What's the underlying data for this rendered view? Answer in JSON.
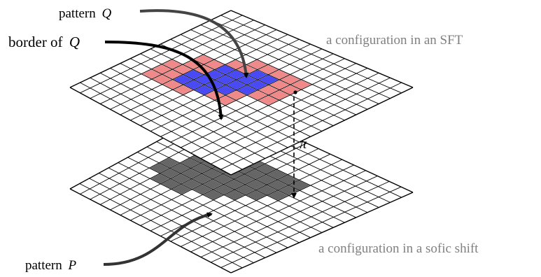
{
  "labels": {
    "pattern_q": {
      "text": "pattern",
      "symbol": "Q"
    },
    "border_q": {
      "text": "border of",
      "symbol": "Q"
    },
    "pattern_p": {
      "text": "pattern",
      "symbol": "P"
    },
    "sft_caption": "a configuration in an SFT",
    "sofic_caption": "a configuration in a sofic shift",
    "map_symbol": "π"
  },
  "colors": {
    "pattern_q": "#4a4af5",
    "border_q": "#f08a8a",
    "pattern_p": "#666666",
    "grid_line": "#000000",
    "caption": "#808080"
  },
  "grid": {
    "cells": 16
  },
  "upper_sheet": {
    "pattern_q_cells": [
      [
        6,
        4
      ],
      [
        6,
        5
      ],
      [
        6,
        6
      ],
      [
        7,
        4
      ],
      [
        7,
        5
      ],
      [
        7,
        6
      ],
      [
        7,
        7
      ],
      [
        8,
        5
      ],
      [
        8,
        6
      ],
      [
        8,
        7
      ],
      [
        8,
        8
      ],
      [
        9,
        5
      ],
      [
        9,
        6
      ],
      [
        9,
        7
      ],
      [
        9,
        8
      ],
      [
        10,
        7
      ],
      [
        10,
        8
      ]
    ],
    "border_q_cells": [
      [
        5,
        2
      ],
      [
        5,
        3
      ],
      [
        5,
        4
      ],
      [
        5,
        5
      ],
      [
        6,
        2
      ],
      [
        6,
        3
      ],
      [
        6,
        7
      ],
      [
        6,
        8
      ],
      [
        7,
        2
      ],
      [
        7,
        3
      ],
      [
        7,
        8
      ],
      [
        8,
        3
      ],
      [
        8,
        4
      ],
      [
        8,
        9
      ],
      [
        8,
        10
      ],
      [
        9,
        3
      ],
      [
        9,
        4
      ],
      [
        9,
        9
      ],
      [
        9,
        10
      ],
      [
        10,
        5
      ],
      [
        10,
        6
      ],
      [
        10,
        9
      ],
      [
        10,
        10
      ],
      [
        11,
        6
      ],
      [
        11,
        7
      ],
      [
        11,
        8
      ],
      [
        11,
        9
      ],
      [
        11,
        10
      ]
    ],
    "marked_cell": [
      11,
      4
    ]
  },
  "lower_sheet": {
    "pattern_p_cells": [
      [
        5,
        3
      ],
      [
        5,
        4
      ],
      [
        5,
        5
      ],
      [
        6,
        2
      ],
      [
        6,
        3
      ],
      [
        6,
        4
      ],
      [
        6,
        5
      ],
      [
        6,
        6
      ],
      [
        6,
        7
      ],
      [
        7,
        2
      ],
      [
        7,
        3
      ],
      [
        7,
        4
      ],
      [
        7,
        5
      ],
      [
        7,
        6
      ],
      [
        7,
        7
      ],
      [
        7,
        8
      ],
      [
        8,
        3
      ],
      [
        8,
        4
      ],
      [
        8,
        5
      ],
      [
        8,
        6
      ],
      [
        8,
        7
      ],
      [
        8,
        8
      ],
      [
        8,
        9
      ],
      [
        9,
        3
      ],
      [
        9,
        4
      ],
      [
        9,
        5
      ],
      [
        9,
        6
      ],
      [
        9,
        7
      ],
      [
        9,
        8
      ],
      [
        9,
        9
      ],
      [
        9,
        10
      ],
      [
        10,
        5
      ],
      [
        10,
        6
      ],
      [
        10,
        7
      ],
      [
        10,
        8
      ],
      [
        10,
        9
      ],
      [
        10,
        10
      ],
      [
        11,
        6
      ],
      [
        11,
        7
      ],
      [
        11,
        8
      ],
      [
        11,
        9
      ],
      [
        11,
        10
      ],
      [
        12,
        4
      ]
    ]
  }
}
